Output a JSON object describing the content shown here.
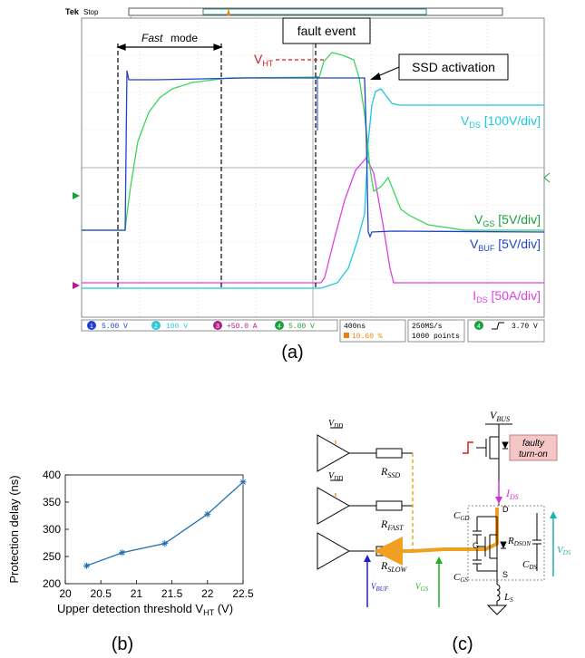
{
  "panel_a": {
    "label": "(a)",
    "scope": {
      "brand": "Tek",
      "status": "Stop",
      "fast_mode": "mode",
      "fast_mode_em": "Fast",
      "fault_event": "fault event",
      "vht": {
        "main": "V",
        "sub": "HT"
      },
      "ssd_activation": "SSD activation",
      "vds": {
        "main": "V",
        "sub": "DS",
        "rest": " [100V/div]"
      },
      "vgs": {
        "main": "V",
        "sub": "GS",
        "rest": " [5V/div]"
      },
      "vbuf": {
        "main": "V",
        "sub": "BUF",
        "rest": " [5V/div]"
      },
      "ids": {
        "main": "I",
        "sub": "DS",
        "rest": " [50A/div]"
      },
      "channels": [
        {
          "num": "1",
          "value": "5.00 V",
          "color": "#1f3fd1"
        },
        {
          "num": "2",
          "value": "100 V",
          "color": "#28c8d8"
        },
        {
          "num": "3",
          "value": "+50.0 A",
          "color": "#b0208a"
        },
        {
          "num": "4",
          "value": "5.00 V",
          "color": "#1aa13a"
        }
      ],
      "timebase": "400ns",
      "trigger_pos": "10.60 %",
      "sample_rate": "250MS/s",
      "record_length": "1000 points",
      "trigger_channel": "4",
      "trigger_level": "3.70 V"
    },
    "colors": {
      "vds": "#1ec8e0",
      "vgs": "#3ad65a",
      "vbuf": "#1e45c8",
      "ids": "#e040e0",
      "vht": "#e01818",
      "bg": "#ffffff"
    }
  },
  "panel_b": {
    "label": "(b)",
    "chart_data": {
      "type": "line",
      "x": [
        20.3,
        20.8,
        21.4,
        22.0,
        22.5
      ],
      "y": [
        233,
        257,
        274,
        328,
        387
      ],
      "xlabel": "Upper detection threshold V",
      "xlabel_sub": "HT",
      "xlabel_unit": " (V)",
      "ylabel": "Protection delay (ns)",
      "xlim": [
        20,
        22.5
      ],
      "ylim": [
        200,
        400
      ],
      "xticks": [
        "20",
        "20.5",
        "21",
        "21.5",
        "22",
        "22.5"
      ],
      "yticks": [
        "200",
        "250",
        "300",
        "350",
        "400"
      ],
      "grid": false,
      "marker": "star",
      "color": "#1f6fb2"
    }
  },
  "panel_c": {
    "label": "(c)",
    "vbus": {
      "main": "V",
      "sub": "BUS"
    },
    "faulty_turn_on": [
      "faulty",
      "turn-on"
    ],
    "ids": {
      "main": "I",
      "sub": "DS"
    },
    "vds": {
      "main": "V",
      "sub": "DS"
    },
    "vdd_1": {
      "main": "V",
      "sub": "DD"
    },
    "vdd_2": {
      "main": "V",
      "sub": "DD"
    },
    "rssd": {
      "main": "R",
      "sub": "SSD"
    },
    "rfast": {
      "main": "R",
      "sub": "FAST"
    },
    "rslow": {
      "main": "R",
      "sub": "SLOW"
    },
    "vbuf": {
      "main": "V",
      "sub": "BUF"
    },
    "vgs": {
      "main": "V",
      "sub": "GS"
    },
    "cgd": {
      "main": "C",
      "sub": "GD"
    },
    "cgs": {
      "main": "C",
      "sub": "GS"
    },
    "rdson": {
      "main": "R",
      "sub": "DSON"
    },
    "cds": {
      "main": "C",
      "sub": "DS"
    },
    "ls": {
      "main": "L",
      "sub": "S"
    },
    "node_d": "D",
    "node_g": "G",
    "node_s": "S",
    "colors": {
      "path": "#f0a020",
      "ids": "#d030d0",
      "vds": "#20b0b0",
      "vgs": "#20b020",
      "vbuf": "#2020c0",
      "fault_box": "#f4c6c6"
    }
  }
}
